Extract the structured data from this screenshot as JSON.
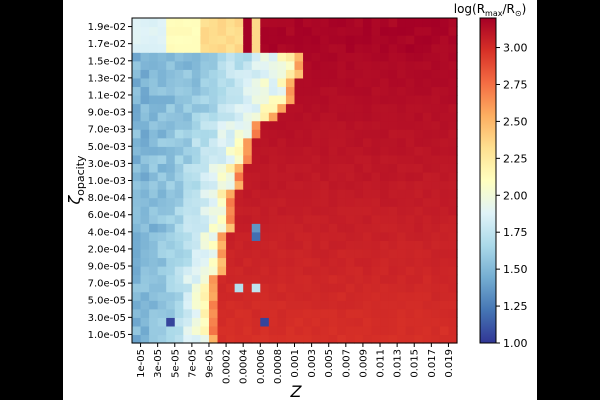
{
  "chart_data": {
    "type": "heatmap",
    "title": "",
    "xlabel": "Z",
    "ylabel_main": "ζ",
    "ylabel_sub": "opacity",
    "x_tick_labels": [
      "1e-05",
      "3e-05",
      "5e-05",
      "7e-05",
      "9e-05",
      "0.0002",
      "0.0004",
      "0.0006",
      "0.0008",
      "0.001",
      "0.003",
      "0.005",
      "0.007",
      "0.009",
      "0.011",
      "0.013",
      "0.015",
      "0.017",
      "0.019"
    ],
    "y_tick_labels": [
      "1.0e-05",
      "3.0e-05",
      "5.0e-05",
      "7.0e-05",
      "9.0e-05",
      "2.0e-04",
      "4.0e-04",
      "6.0e-04",
      "8.0e-04",
      "1.0e-03",
      "3.0e-03",
      "5.0e-03",
      "7.0e-03",
      "9.0e-03",
      "1.1e-02",
      "1.3e-02",
      "1.5e-02",
      "1.7e-02",
      "1.9e-02"
    ],
    "n_cols": 38,
    "n_rows": 38,
    "colormap": "RdYlBu_r",
    "colorbar": {
      "label_main": "log(R",
      "label_sub": "max",
      "label_mid": "/R",
      "label_sun": "⊙",
      "label_end": ")",
      "min": 1.0,
      "max": 3.2,
      "ticks": [
        "1.00",
        "1.25",
        "1.50",
        "1.75",
        "2.00",
        "2.25",
        "2.50",
        "2.75",
        "3.00"
      ]
    },
    "boundary_last_low_col_by_row": [
      8,
      8,
      8,
      8,
      8,
      8,
      8,
      8,
      9,
      9,
      9,
      9,
      9,
      10,
      10,
      10,
      10,
      10,
      11,
      11,
      11,
      12,
      12,
      12,
      13,
      13,
      15,
      16,
      17,
      17,
      17,
      18,
      18,
      18,
      19,
      19,
      19,
      19
    ],
    "boundary_note": "row 0 = bottom (zeta=1.0e-05); columns <= value are low-radius (blue), columns beyond are high-radius (red)",
    "top_region": {
      "rows": [
        34,
        37
      ],
      "low_col_end": 12,
      "gap_col": 13,
      "stripe_col": 14,
      "values": {
        "left": 1.85,
        "mid": 2.1,
        "right": 2.3,
        "gap": 3.2,
        "stripe": 2.35
      }
    },
    "value_ranges": {
      "low_left": [
        1.4,
        1.6
      ],
      "low_right_edge": [
        1.9,
        2.25
      ],
      "high": [
        2.95,
        3.2
      ]
    },
    "outliers": [
      {
        "col": 4,
        "row": 2,
        "value": 1.05
      },
      {
        "col": 15,
        "row": 2,
        "value": 1.05
      },
      {
        "col": 14,
        "row": 12,
        "value": 1.2
      },
      {
        "col": 14,
        "row": 13,
        "value": 1.35
      },
      {
        "col": 12,
        "row": 6,
        "value": 1.7
      },
      {
        "col": 14,
        "row": 6,
        "value": 1.75
      }
    ]
  }
}
